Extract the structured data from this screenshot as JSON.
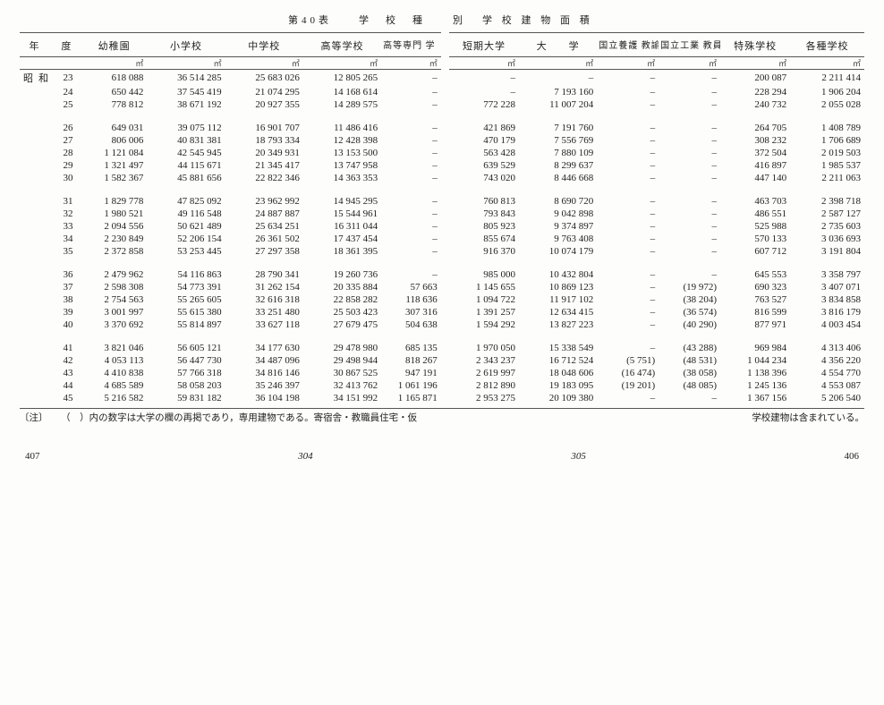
{
  "title": {
    "table_no": "第40表",
    "mid1": "学　校　種",
    "mid2": "別",
    "mid3": "学 校 建 物 面 積"
  },
  "columns": {
    "left": [
      "年　　度",
      "幼稚園",
      "小学校",
      "中学校",
      "高等学校",
      "高等専門\n学　　校"
    ],
    "right": [
      "短期大学",
      "大　　学",
      "国立養護\n教諭養成所",
      "国立工業\n教員養成所",
      "特殊学校",
      "各種学校"
    ]
  },
  "unit": "㎡",
  "era": "昭和",
  "rows": [
    {
      "year": "23",
      "group": 0,
      "c": [
        "618 088",
        "36 514 285",
        "25 683 026",
        "12 805 265",
        "–",
        "–",
        "–",
        "–",
        "–",
        "200 087",
        "2 211 414"
      ]
    },
    {
      "year": "24",
      "group": 0,
      "c": [
        "650 442",
        "37 545 419",
        "21 074 295",
        "14 168 614",
        "–",
        "–",
        "7 193 160",
        "–",
        "–",
        "228 294",
        "1 906 204"
      ]
    },
    {
      "year": "25",
      "group": 0,
      "c": [
        "778 812",
        "38 671 192",
        "20 927 355",
        "14 289 575",
        "–",
        "772 228",
        "11 007 204",
        "–",
        "–",
        "240 732",
        "2 055 028"
      ]
    },
    {
      "year": "26",
      "group": 1,
      "c": [
        "649 031",
        "39 075 112",
        "16 901 707",
        "11 486 416",
        "–",
        "421 869",
        "7 191 760",
        "–",
        "–",
        "264 705",
        "1 408 789"
      ]
    },
    {
      "year": "27",
      "group": 1,
      "c": [
        "806 006",
        "40 831 381",
        "18 793 334",
        "12 428 398",
        "–",
        "470 179",
        "7 556 769",
        "–",
        "–",
        "308 232",
        "1 706 689"
      ]
    },
    {
      "year": "28",
      "group": 1,
      "c": [
        "1 121 084",
        "42 545 945",
        "20 349 931",
        "13 153 500",
        "–",
        "563 428",
        "7 880 109",
        "–",
        "–",
        "372 504",
        "2 019 503"
      ]
    },
    {
      "year": "29",
      "group": 1,
      "c": [
        "1 321 497",
        "44 115 671",
        "21 345 417",
        "13 747 958",
        "–",
        "639 529",
        "8 299 637",
        "–",
        "–",
        "416 897",
        "1 985 537"
      ]
    },
    {
      "year": "30",
      "group": 1,
      "c": [
        "1 582 367",
        "45 881 656",
        "22 822 346",
        "14 363 353",
        "–",
        "743 020",
        "8 446 668",
        "–",
        "–",
        "447 140",
        "2 211 063"
      ]
    },
    {
      "year": "31",
      "group": 2,
      "c": [
        "1 829 778",
        "47 825 092",
        "23 962 992",
        "14 945 295",
        "–",
        "760 813",
        "8 690 720",
        "–",
        "–",
        "463 703",
        "2 398 718"
      ]
    },
    {
      "year": "32",
      "group": 2,
      "c": [
        "1 980 521",
        "49 116 548",
        "24 887 887",
        "15 544 961",
        "–",
        "793 843",
        "9 042 898",
        "–",
        "–",
        "486 551",
        "2 587 127"
      ]
    },
    {
      "year": "33",
      "group": 2,
      "c": [
        "2 094 556",
        "50 621 489",
        "25 634 251",
        "16 311 044",
        "–",
        "805 923",
        "9 374 897",
        "–",
        "–",
        "525 988",
        "2 735 603"
      ]
    },
    {
      "year": "34",
      "group": 2,
      "c": [
        "2 230 849",
        "52 206 154",
        "26 361 502",
        "17 437 454",
        "–",
        "855 674",
        "9 763 408",
        "–",
        "–",
        "570 133",
        "3 036 693"
      ]
    },
    {
      "year": "35",
      "group": 2,
      "c": [
        "2 372 858",
        "53 253 445",
        "27 297 358",
        "18 361 395",
        "–",
        "916 370",
        "10 074 179",
        "–",
        "–",
        "607 712",
        "3 191 804"
      ]
    },
    {
      "year": "36",
      "group": 3,
      "c": [
        "2 479 962",
        "54 116 863",
        "28 790 341",
        "19 260 736",
        "–",
        "985 000",
        "10 432 804",
        "–",
        "–",
        "645 553",
        "3 358 797"
      ]
    },
    {
      "year": "37",
      "group": 3,
      "c": [
        "2 598 308",
        "54 773 391",
        "31 262 154",
        "20 335 884",
        "57 663",
        "1 145 655",
        "10 869 123",
        "–",
        "(19 972)",
        "690 323",
        "3 407 071"
      ]
    },
    {
      "year": "38",
      "group": 3,
      "c": [
        "2 754 563",
        "55 265 605",
        "32 616 318",
        "22 858 282",
        "118 636",
        "1 094 722",
        "11 917 102",
        "–",
        "(38 204)",
        "763 527",
        "3 834 858"
      ]
    },
    {
      "year": "39",
      "group": 3,
      "c": [
        "3 001 997",
        "55 615 380",
        "33 251 480",
        "25 503 423",
        "307 316",
        "1 391 257",
        "12 634 415",
        "–",
        "(36 574)",
        "816 599",
        "3 816 179"
      ]
    },
    {
      "year": "40",
      "group": 3,
      "c": [
        "3 370 692",
        "55 814 897",
        "33 627 118",
        "27 679 475",
        "504 638",
        "1 594 292",
        "13 827 223",
        "–",
        "(40 290)",
        "877 971",
        "4 003 454"
      ]
    },
    {
      "year": "41",
      "group": 4,
      "c": [
        "3 821 046",
        "56 605 121",
        "34 177 630",
        "29 478 980",
        "685 135",
        "1 970 050",
        "15 338 549",
        "–",
        "(43 288)",
        "969 984",
        "4 313 406"
      ]
    },
    {
      "year": "42",
      "group": 4,
      "c": [
        "4 053 113",
        "56 447 730",
        "34 487 096",
        "29 498 944",
        "818 267",
        "2 343 237",
        "16 712 524",
        "(5 751)",
        "(48 531)",
        "1 044 234",
        "4 356 220"
      ]
    },
    {
      "year": "43",
      "group": 4,
      "c": [
        "4 410 838",
        "57 766 318",
        "34 816 146",
        "30 867 525",
        "947 191",
        "2 619 997",
        "18 048 606",
        "(16 474)",
        "(38 058)",
        "1 138 396",
        "4 554 770"
      ]
    },
    {
      "year": "44",
      "group": 4,
      "c": [
        "4 685 589",
        "58 058 203",
        "35 246 397",
        "32 413 762",
        "1 061 196",
        "2 812 890",
        "19 183 095",
        "(19 201)",
        "(48 085)",
        "1 245 136",
        "4 553 087"
      ]
    },
    {
      "year": "45",
      "group": 4,
      "c": [
        "5 216 582",
        "59 831 182",
        "36 104 198",
        "34 151 992",
        "1 165 871",
        "2 953 275",
        "20 109 380",
        "–",
        "–",
        "1 367 156",
        "5 206 540"
      ]
    }
  ],
  "note": {
    "label": "〔注〕",
    "left": "（　）内の数字は大学の欄の再掲であり，専用建物である。寄宿舎・教職員住宅・仮",
    "right": "学校建物は含まれている。"
  },
  "page_numbers": {
    "outer_left": "407",
    "inner_left": "304",
    "inner_right": "305",
    "outer_right": "406"
  }
}
